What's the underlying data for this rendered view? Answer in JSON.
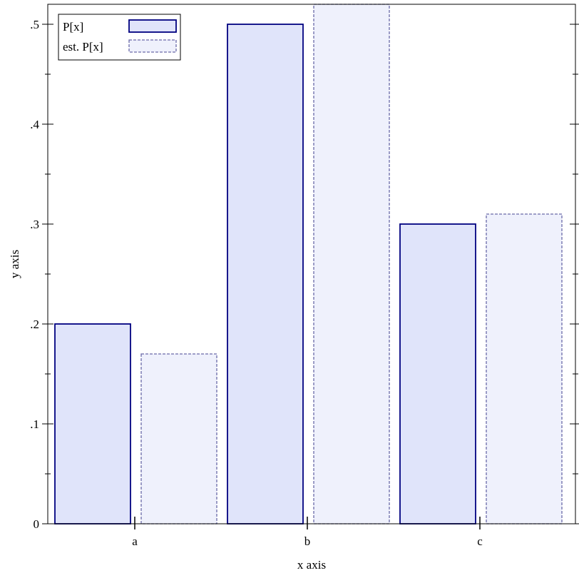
{
  "chart_data": {
    "type": "bar",
    "x_label": "x axis",
    "y_label": "y axis",
    "categories": [
      "a",
      "b",
      "c"
    ],
    "series": [
      {
        "name": "P[x]",
        "color": "#e0e4fa",
        "stroke": "#000080",
        "dashed": false,
        "values": [
          0.2,
          0.5,
          0.3
        ]
      },
      {
        "name": "est. P[x]",
        "color": "#eff1fc",
        "stroke": "#6a6aa8",
        "dashed": true,
        "values": [
          0.17,
          0.52,
          0.31
        ]
      }
    ],
    "ylim": [
      0,
      0.52
    ],
    "yticks": [
      0,
      {
        "value": 0.1,
        "label": ".1"
      },
      {
        "value": 0.2,
        "label": ".2"
      },
      {
        "value": 0.3,
        "label": ".3"
      },
      {
        "value": 0.4,
        "label": ".4"
      },
      {
        "value": 0.5,
        "label": ".5"
      }
    ],
    "yminorticks": [
      0.05,
      0.15,
      0.25,
      0.35,
      0.45
    ],
    "legend": "top-left"
  }
}
